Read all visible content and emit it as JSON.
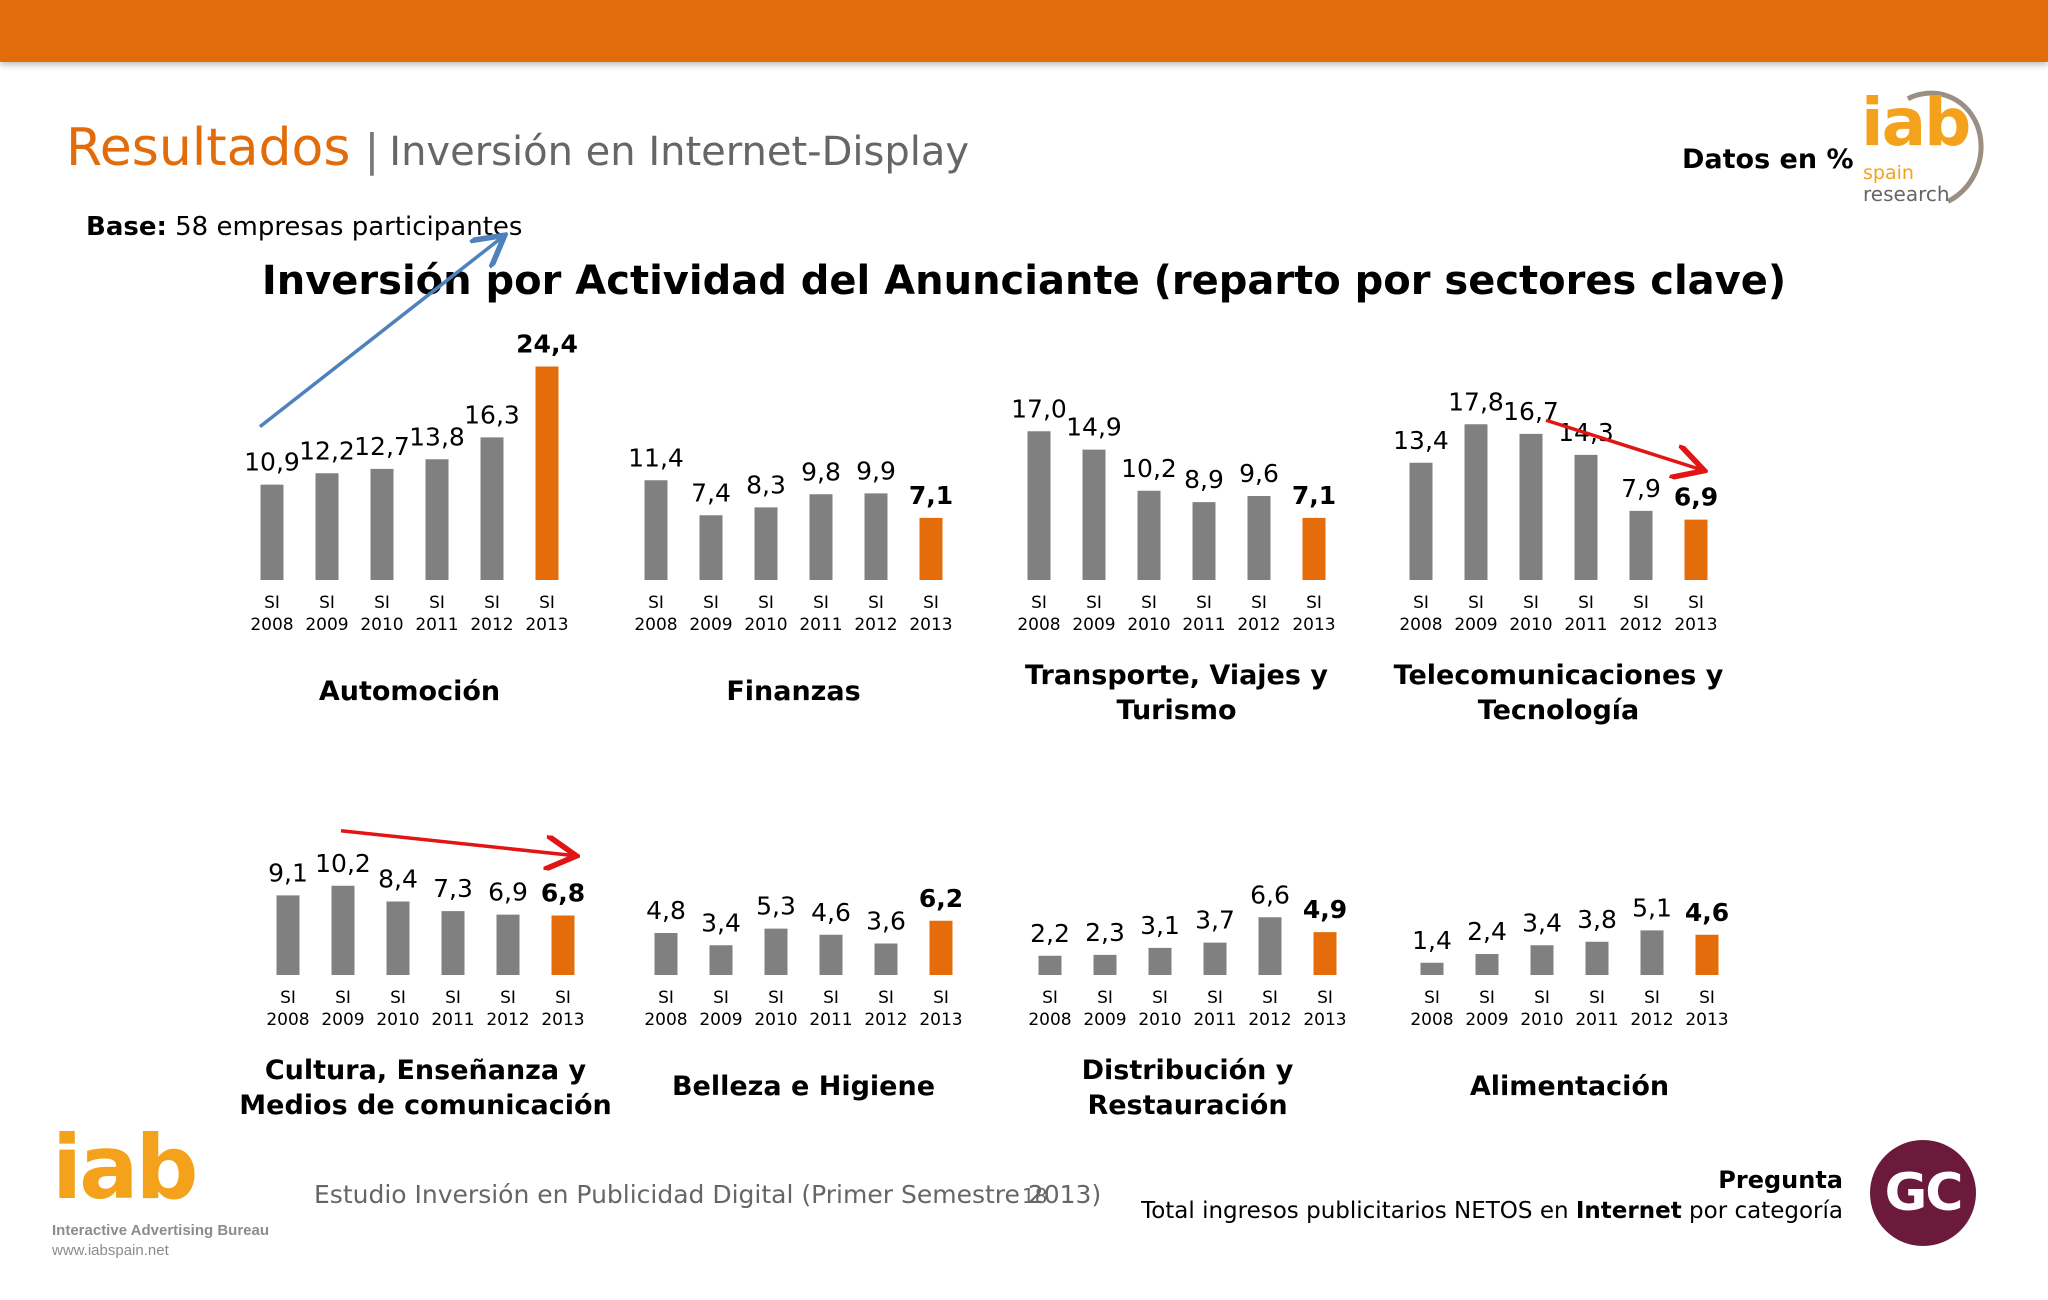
{
  "header": {
    "title": "Resultados",
    "separator": "|",
    "subtitle": "Inversión en Internet-Display",
    "units": "Datos en %",
    "base_label": "Base:",
    "base_text": "58 empresas participantes",
    "logo": {
      "brand": "iab",
      "line1": "spain",
      "line2": "research"
    }
  },
  "main_title": "Inversión por Actividad del Anunciante (reparto por sectores clave)",
  "footer": {
    "study": "Estudio Inversión en Publicidad Digital (Primer Semestre 2013)",
    "page": "18",
    "logo": {
      "brand": "iab",
      "tagline": "Interactive Advertising Bureau",
      "url": "www.iabspain.net"
    },
    "question_label": "Pregunta",
    "question_pre": "Total ingresos publicitarios NETOS  en",
    "question_bold": "Internet",
    "question_post": "por categoría",
    "badge": "GC"
  },
  "colors": {
    "accent": "#e36c0a",
    "bar_gray": "#808080",
    "bar_highlight": "#e46c0a",
    "trend_up": "#4f81bd",
    "trend_down": "#e31414"
  },
  "chart_data": [
    {
      "type": "bar",
      "title": "Automoción",
      "categories": [
        "SI 2008",
        "SI 2009",
        "SI 2010",
        "SI 2011",
        "SI 2012",
        "SI 2013"
      ],
      "values": [
        10.9,
        12.2,
        12.7,
        13.8,
        16.3,
        24.4
      ],
      "labels": [
        "10,9",
        "12,2",
        "12,7",
        "13,8",
        "16,3",
        "24,4"
      ],
      "highlight_last": true,
      "trend": "up"
    },
    {
      "type": "bar",
      "title": "Finanzas",
      "categories": [
        "SI 2008",
        "SI 2009",
        "SI 2010",
        "SI 2011",
        "SI 2012",
        "SI 2013"
      ],
      "values": [
        11.4,
        7.4,
        8.3,
        9.8,
        9.9,
        7.1
      ],
      "labels": [
        "11,4",
        "7,4",
        "8,3",
        "9,8",
        "9,9",
        "7,1"
      ],
      "highlight_last": true
    },
    {
      "type": "bar",
      "title": "Transporte, Viajes y Turismo",
      "title_lines": [
        "Transporte, Viajes y",
        "Turismo"
      ],
      "categories": [
        "SI 2008",
        "SI 2009",
        "SI 2010",
        "SI 2011",
        "SI 2012",
        "SI 2013"
      ],
      "values": [
        17.0,
        14.9,
        10.2,
        8.9,
        9.6,
        7.1
      ],
      "labels": [
        "17,0",
        "14,9",
        "10,2",
        "8,9",
        "9,6",
        "7,1"
      ],
      "highlight_last": true
    },
    {
      "type": "bar",
      "title": "Telecomunicaciones y Tecnología",
      "title_lines": [
        "Telecomunicaciones y",
        "Tecnología"
      ],
      "categories": [
        "SI 2008",
        "SI 2009",
        "SI 2010",
        "SI 2011",
        "SI 2012",
        "SI 2013"
      ],
      "values": [
        13.4,
        17.8,
        16.7,
        14.3,
        7.9,
        6.9
      ],
      "labels": [
        "13,4",
        "17,8",
        "16,7",
        "14,3",
        "7,9",
        "6,9"
      ],
      "highlight_last": true,
      "trend": "down"
    },
    {
      "type": "bar",
      "title": "Cultura, Enseñanza y Medios de comunicación",
      "title_lines": [
        "Cultura, Enseñanza y",
        "Medios de comunicación"
      ],
      "categories": [
        "SI 2008",
        "SI 2009",
        "SI 2010",
        "SI 2011",
        "SI 2012",
        "SI 2013"
      ],
      "values": [
        9.1,
        10.2,
        8.4,
        7.3,
        6.9,
        6.8
      ],
      "labels": [
        "9,1",
        "10,2",
        "8,4",
        "7,3",
        "6,9",
        "6,8"
      ],
      "highlight_last": true,
      "trend": "down"
    },
    {
      "type": "bar",
      "title": "Belleza e Higiene",
      "categories": [
        "SI 2008",
        "SI 2009",
        "SI 2010",
        "SI 2011",
        "SI 2012",
        "SI 2013"
      ],
      "values": [
        4.8,
        3.4,
        5.3,
        4.6,
        3.6,
        6.2
      ],
      "labels": [
        "4,8",
        "3,4",
        "5,3",
        "4,6",
        "3,6",
        "6,2"
      ],
      "highlight_last": true
    },
    {
      "type": "bar",
      "title": "Distribución y Restauración",
      "title_lines": [
        "Distribución y",
        "Restauración"
      ],
      "categories": [
        "SI 2008",
        "SI 2009",
        "SI 2010",
        "SI 2011",
        "SI 2012",
        "SI 2013"
      ],
      "values": [
        2.2,
        2.3,
        3.1,
        3.7,
        6.6,
        4.9
      ],
      "labels": [
        "2,2",
        "2,3",
        "3,1",
        "3,7",
        "6,6",
        "4,9"
      ],
      "highlight_last": true
    },
    {
      "type": "bar",
      "title": "Alimentación",
      "categories": [
        "SI 2008",
        "SI 2009",
        "SI 2010",
        "SI 2011",
        "SI 2012",
        "SI 2013"
      ],
      "values": [
        1.4,
        2.4,
        3.4,
        3.8,
        5.1,
        4.6
      ],
      "labels": [
        "1,4",
        "2,4",
        "3,4",
        "3,8",
        "5,1",
        "4,6"
      ],
      "highlight_last": true
    }
  ]
}
